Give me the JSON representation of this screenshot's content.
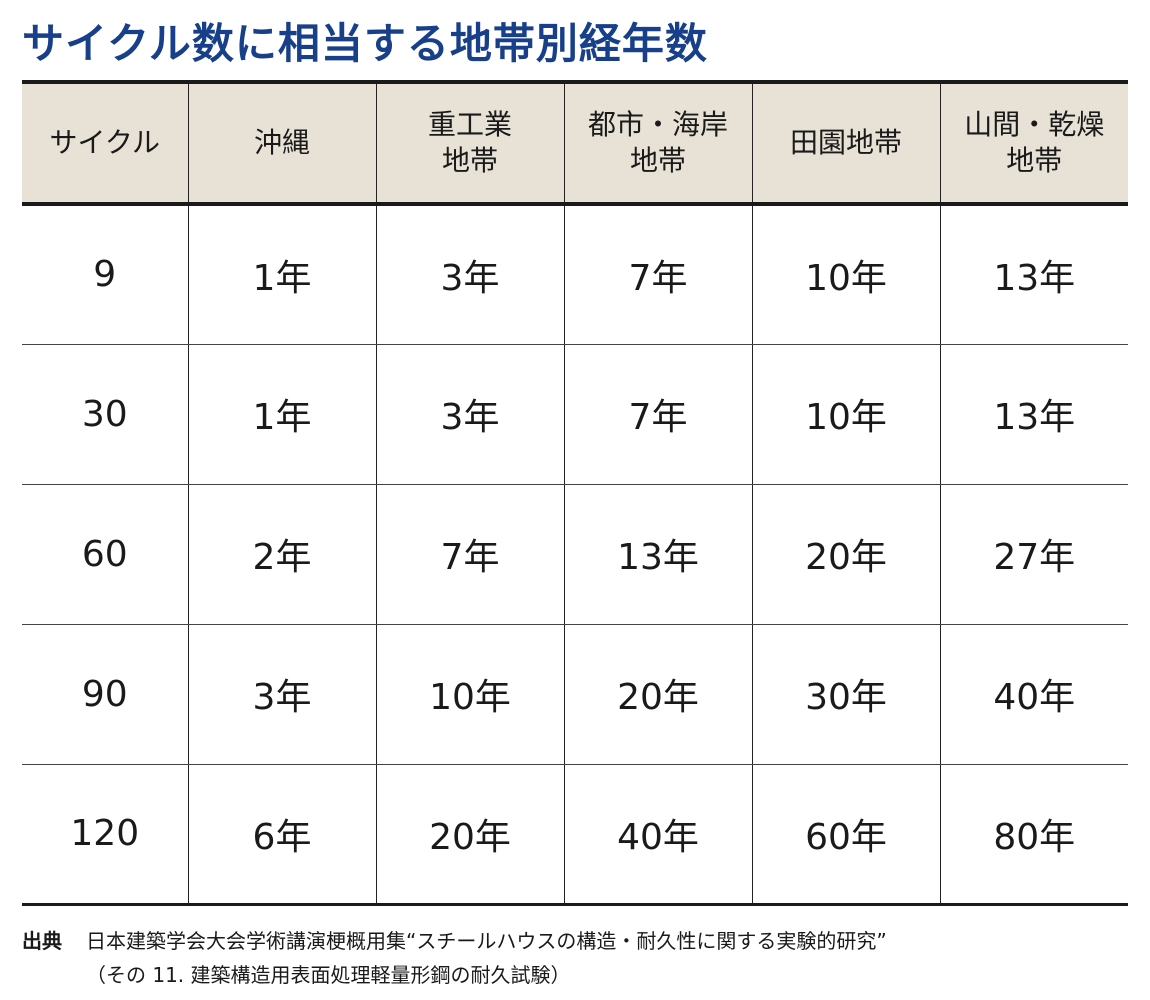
{
  "title": "サイクル数に相当する地帯別経年数",
  "table": {
    "headers": [
      [
        "サイクル"
      ],
      [
        "沖縄"
      ],
      [
        "重工業",
        "地帯"
      ],
      [
        "都市・海岸",
        "地帯"
      ],
      [
        "田園地帯"
      ],
      [
        "山間・乾燥",
        "地帯"
      ]
    ],
    "rows": [
      [
        "9",
        "1年",
        "3年",
        "7年",
        "10年",
        "13年"
      ],
      [
        "30",
        "1年",
        "3年",
        "7年",
        "10年",
        "13年"
      ],
      [
        "60",
        "2年",
        "7年",
        "13年",
        "20年",
        "27年"
      ],
      [
        "90",
        "3年",
        "10年",
        "20年",
        "30年",
        "40年"
      ],
      [
        "120",
        "6年",
        "20年",
        "40年",
        "60年",
        "80年"
      ]
    ]
  },
  "source": {
    "label": "出典",
    "line1": "日本建築学会大会学術講演梗概用集“スチールハウスの構造・耐久性に関する実験的研究”",
    "line2": "（その 11. 建築構造用表面処理軽量形鋼の耐久試験）"
  },
  "colors": {
    "title": "#173f8a",
    "header_bg": "#e7e2d5",
    "rule": "#1a1a1a"
  }
}
